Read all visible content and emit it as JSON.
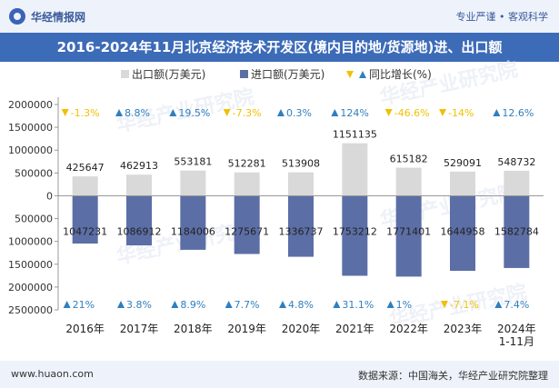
{
  "header": {
    "brand": "华经情报网",
    "slogan": "专业严谨 • 客观科学",
    "title": "2016-2024年11月北京经济技术开发区(境内目的地/货源地)进、出口额"
  },
  "footer": {
    "website": "www.huaon.com",
    "source": "数据来源：中国海关，华经产业研究院整理"
  },
  "watermark": {
    "text": "华经产业研究院",
    "url": "www.huaon.com"
  },
  "colors": {
    "export": "#d9d9d9",
    "import": "#5b6ea6",
    "growth_up": "#2f7fbf",
    "growth_down": "#f2c000",
    "title_bg": "#3c6bb8"
  },
  "chart_data": {
    "type": "bar",
    "categories": [
      "2016年",
      "2017年",
      "2018年",
      "2019年",
      "2020年",
      "2021年",
      "2022年",
      "2023年",
      "2024年\n1-11月"
    ],
    "series": [
      {
        "name": "出口额(万美元)",
        "values": [
          425647,
          462913,
          553181,
          512281,
          513908,
          1151135,
          615182,
          529091,
          548732
        ]
      },
      {
        "name": "进口额(万美元)",
        "values": [
          -1047231,
          -1086912,
          -1184006,
          -1275671,
          -1336737,
          -1753212,
          -1771401,
          -1644958,
          -1582784
        ]
      }
    ],
    "export_growth": [
      "-1.3%",
      "8.8%",
      "19.5%",
      "-7.3%",
      "0.3%",
      "124%",
      "-46.6%",
      "-14%",
      "12.6%"
    ],
    "import_growth": [
      "21%",
      "3.8%",
      "8.9%",
      "7.7%",
      "4.8%",
      "31.1%",
      "1%",
      "-7.1%",
      "7.4%"
    ],
    "growth_legend": "同比增长(%)",
    "ylim": [
      -2500000,
      2000000
    ],
    "yticks": [
      2000000,
      1500000,
      1000000,
      500000,
      0,
      -500000,
      -1000000,
      -1500000,
      -2000000,
      -2500000
    ],
    "ytick_labels": [
      "2000000",
      "1500000",
      "1000000",
      "500000",
      "0",
      "500000",
      "1000000",
      "1500000",
      "2000000",
      "2500000"
    ],
    "legend_position": "top-center",
    "grid": false
  }
}
